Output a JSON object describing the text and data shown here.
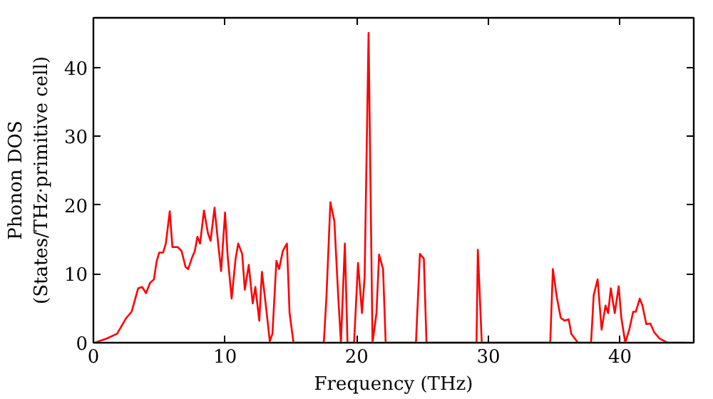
{
  "chart_data": {
    "type": "line",
    "xlabel": "Frequency (THz)",
    "ylabel": "Phonon DOS\n(States/THz·primitive cell)",
    "x": [
      0.1,
      1.0,
      1.8,
      2.5,
      2.9,
      3.4,
      3.7,
      4.0,
      4.3,
      4.6,
      4.8,
      5.0,
      5.3,
      5.5,
      5.8,
      6.0,
      6.4,
      6.7,
      7.0,
      7.2,
      7.5,
      7.7,
      7.9,
      8.1,
      8.4,
      8.7,
      8.9,
      9.2,
      9.5,
      9.7,
      10.0,
      10.2,
      10.5,
      10.8,
      11.0,
      11.3,
      11.5,
      11.8,
      12.1,
      12.3,
      12.6,
      12.8,
      13.1,
      13.4,
      13.6,
      13.9,
      14.1,
      14.4,
      14.7,
      14.9,
      15.2,
      17.5,
      17.7,
      18.0,
      18.3,
      18.6,
      18.8,
      19.1,
      19.3,
      19.8,
      20.1,
      20.4,
      20.6,
      20.9,
      21.2,
      21.5,
      21.7,
      22.0,
      22.2,
      24.5,
      24.8,
      25.1,
      25.3,
      29.1,
      29.2,
      29.5,
      34.7,
      34.9,
      35.2,
      35.5,
      35.8,
      36.1,
      36.3,
      36.8,
      37.8,
      38.0,
      38.3,
      38.6,
      38.9,
      39.1,
      39.3,
      39.6,
      39.9,
      40.1,
      40.4,
      40.7,
      41.0,
      41.2,
      41.5,
      41.7,
      42.0,
      42.3,
      42.6,
      43.0,
      43.6,
      45.0
    ],
    "series": [
      {
        "color": "#ff0000",
        "values": [
          0,
          0.6,
          1.3,
          3.6,
          4.5,
          7.9,
          8.1,
          7.2,
          8.7,
          9.2,
          11.8,
          13.1,
          13.1,
          14.4,
          19.1,
          13.9,
          13.9,
          13.3,
          11.0,
          10.7,
          12.4,
          13.3,
          15.4,
          14.4,
          19.2,
          15.9,
          14.8,
          19.6,
          14.0,
          10.4,
          18.9,
          12.5,
          6.4,
          12.2,
          14.4,
          12.9,
          7.7,
          11.3,
          5.7,
          8.1,
          3.2,
          10.3,
          5.4,
          0.2,
          1.3,
          11.9,
          10.7,
          13.4,
          14.4,
          4.3,
          0,
          0,
          6.6,
          20.4,
          17.7,
          6.6,
          0,
          14.4,
          0,
          0,
          11.6,
          4.3,
          9.5,
          45.0,
          0,
          4.3,
          12.8,
          10.7,
          0,
          0,
          12.9,
          12.2,
          0,
          0,
          13.5,
          0,
          0,
          10.7,
          6.6,
          3.6,
          3.2,
          3.4,
          1.3,
          0,
          0,
          6.9,
          9.2,
          1.9,
          5.4,
          4.3,
          7.9,
          4.3,
          8.2,
          3.6,
          0,
          1.9,
          4.5,
          4.5,
          6.4,
          5.4,
          2.7,
          2.8,
          1.5,
          0.6,
          0,
          0
        ]
      }
    ],
    "xlim": [
      0,
      45.6
    ],
    "ylim": [
      0,
      47.2
    ],
    "xticks": [
      0,
      10,
      20,
      30,
      40
    ],
    "yticks": [
      0,
      10,
      20,
      30,
      40
    ],
    "grid": false,
    "line_style": "solid",
    "marker": "none"
  }
}
